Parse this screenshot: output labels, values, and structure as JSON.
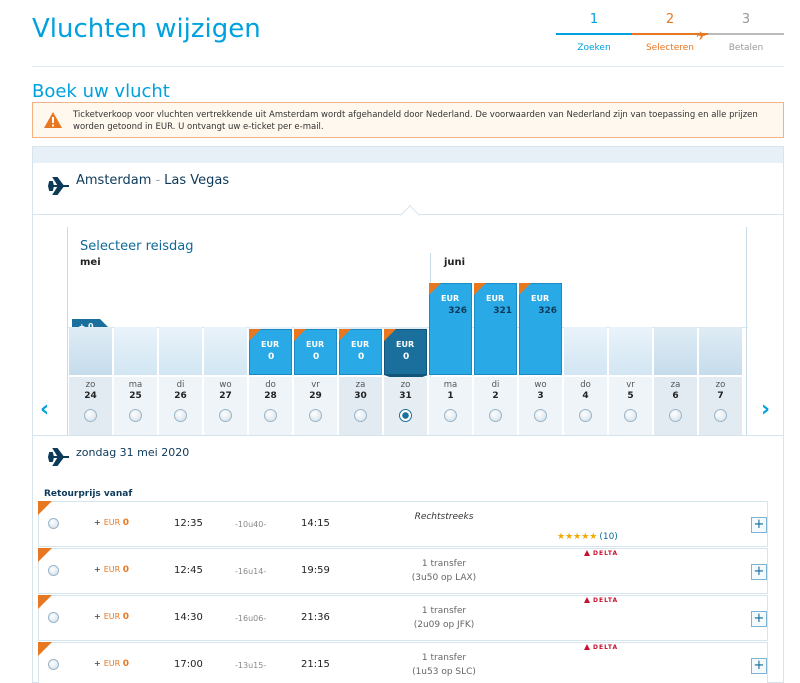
{
  "header": {
    "title": "Vluchten wijzigen",
    "steps": [
      {
        "num": "1",
        "label": "Zoeken"
      },
      {
        "num": "2",
        "label": "Selecteren"
      },
      {
        "num": "3",
        "label": "Betalen"
      }
    ]
  },
  "subtitle": "Boek uw vlucht",
  "notice": {
    "text": "Ticketverkoop voor vluchten vertrekkende uit Amsterdam wordt afgehandeld door Nederland. De voorwaarden van Nederland zijn van toepassing en alle prijzen worden getoond in EUR. U ontvangt uw e-ticket per e-mail."
  },
  "route": {
    "from": "Amsterdam",
    "sep": "-",
    "to": "Las Vegas"
  },
  "calendar": {
    "title": "Selecteer reisdag",
    "months": [
      "mei",
      "juni"
    ],
    "zero_label": "+ 0",
    "days": [
      {
        "name": "zo",
        "num": "24",
        "weekend": true
      },
      {
        "name": "ma",
        "num": "25"
      },
      {
        "name": "di",
        "num": "26"
      },
      {
        "name": "wo",
        "num": "27"
      },
      {
        "name": "do",
        "num": "28",
        "price": {
          "cur": "EUR",
          "val": "0"
        }
      },
      {
        "name": "vr",
        "num": "29",
        "price": {
          "cur": "EUR",
          "val": "0"
        }
      },
      {
        "name": "za",
        "num": "30",
        "weekend": true,
        "price": {
          "cur": "EUR",
          "val": "0"
        }
      },
      {
        "name": "zo",
        "num": "31",
        "weekend": true,
        "selected": true,
        "price": {
          "cur": "EUR",
          "val": "0"
        }
      },
      {
        "name": "ma",
        "num": "1",
        "price": {
          "cur": "EUR",
          "val": "326"
        }
      },
      {
        "name": "di",
        "num": "2",
        "price": {
          "cur": "EUR",
          "val": "321"
        }
      },
      {
        "name": "wo",
        "num": "3",
        "price": {
          "cur": "EUR",
          "val": "326"
        }
      },
      {
        "name": "do",
        "num": "4"
      },
      {
        "name": "vr",
        "num": "5"
      },
      {
        "name": "za",
        "num": "6",
        "weekend": true
      },
      {
        "name": "zo",
        "num": "7",
        "weekend": true
      }
    ]
  },
  "selected_date": "zondag 31 mei 2020",
  "retour_label": "Retourprijs vanaf",
  "flights": [
    {
      "price_cur": "EUR",
      "price_val": "0",
      "dep": "12:35",
      "dur": "-10u40-",
      "arr": "14:15",
      "route1": "Rechtstreeks",
      "route2": "",
      "direct": true,
      "stars": "★★★★★",
      "rating": "(10)",
      "airline": ""
    },
    {
      "price_cur": "EUR",
      "price_val": "0",
      "dep": "12:45",
      "dur": "-16u14-",
      "arr": "19:59",
      "route1": "1 transfer",
      "route2": "(3u50 op LAX)",
      "airline": "DELTA"
    },
    {
      "price_cur": "EUR",
      "price_val": "0",
      "dep": "14:30",
      "dur": "-16u06-",
      "arr": "21:36",
      "route1": "1 transfer",
      "route2": "(2u09 op JFK)",
      "airline": "DELTA"
    },
    {
      "price_cur": "EUR",
      "price_val": "0",
      "dep": "17:00",
      "dur": "-13u15-",
      "arr": "21:15",
      "route1": "1 transfer",
      "route2": "(1u53 op SLC)",
      "airline": "DELTA"
    }
  ],
  "icons": {
    "plane": "plane-icon",
    "warning": "warning-icon",
    "prev": "chevron-left-icon",
    "next": "chevron-right-icon",
    "expand": "plus-icon"
  },
  "colors": {
    "brand": "#00a1de",
    "accent": "#e87722",
    "bar": "#29a9e6",
    "selected_bar": "#1b6f9d"
  }
}
